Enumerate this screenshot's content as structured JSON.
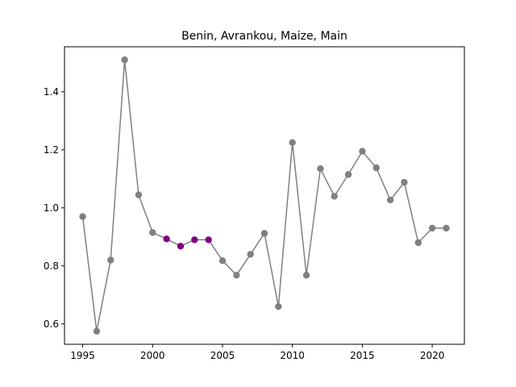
{
  "chart_data": {
    "type": "line",
    "title": "Benin, Avrankou, Maize, Main",
    "xlabel": "",
    "ylabel": "",
    "xlim": [
      1993.7,
      2022.3
    ],
    "ylim": [
      0.53,
      1.555
    ],
    "x_ticks": [
      1995,
      2000,
      2005,
      2010,
      2015,
      2020
    ],
    "y_ticks": [
      0.6,
      0.8,
      1.0,
      1.2,
      1.4
    ],
    "y_tick_labels": [
      "0.6",
      "0.8",
      "1.0",
      "1.2",
      "1.4"
    ],
    "grid": false,
    "line_color": "#808080",
    "default_point_color": "#808080",
    "highlight_point_color": "#800080",
    "x": [
      1995,
      1996,
      1997,
      1998,
      1999,
      2000,
      2001,
      2002,
      2003,
      2004,
      2005,
      2006,
      2007,
      2008,
      2009,
      2010,
      2011,
      2012,
      2013,
      2014,
      2015,
      2016,
      2017,
      2018,
      2019,
      2020,
      2021
    ],
    "y": [
      0.97,
      0.575,
      0.82,
      1.51,
      1.045,
      0.915,
      0.893,
      0.868,
      0.89,
      0.89,
      0.818,
      0.768,
      0.84,
      0.912,
      0.66,
      1.225,
      0.768,
      1.135,
      1.04,
      1.115,
      1.195,
      1.138,
      1.027,
      1.088,
      0.88,
      0.93,
      0.93
    ],
    "highlighted_x": [
      2001,
      2002,
      2003,
      2004
    ]
  }
}
